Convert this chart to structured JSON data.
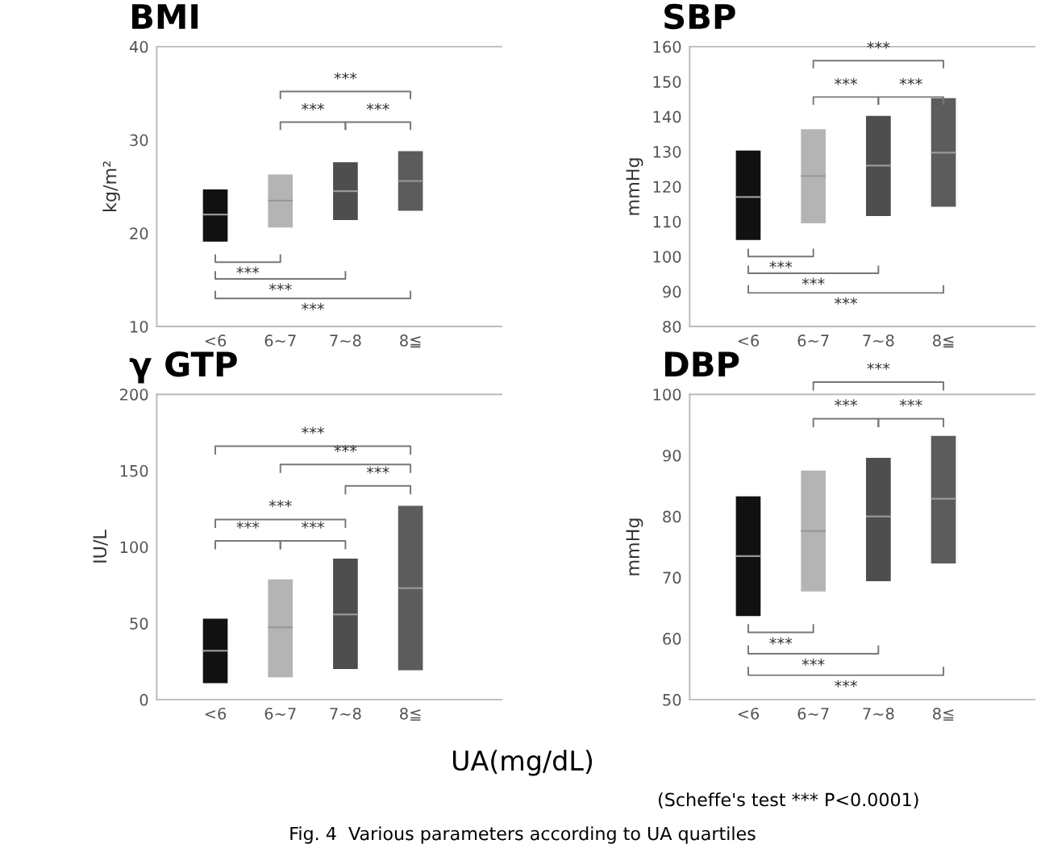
{
  "chart_data": [
    {
      "type": "box",
      "title": "BMI",
      "ylabel": "kg/m²",
      "categories": [
        "<6",
        "6~7",
        "7~8",
        "8≦"
      ],
      "ylim": [
        10,
        40
      ],
      "yticks": [
        10,
        20,
        30,
        40
      ],
      "colors": [
        "#111111",
        "#b4b4b4",
        "#4e4e4e",
        "#5c5c5c"
      ],
      "boxes": [
        {
          "low": 19.1,
          "q1": 19.1,
          "median": 22.0,
          "q3": 24.7,
          "high": 24.7
        },
        {
          "low": 20.6,
          "q1": 20.6,
          "median": 23.5,
          "q3": 26.3,
          "high": 26.3
        },
        {
          "low": 21.4,
          "q1": 21.4,
          "median": 24.5,
          "q3": 27.6,
          "high": 27.6
        },
        {
          "low": 22.4,
          "q1": 22.4,
          "median": 25.6,
          "q3": 28.8,
          "high": 28.8
        }
      ],
      "annotations": [
        "***",
        "***",
        "***",
        "***",
        "***",
        "***"
      ]
    },
    {
      "type": "box",
      "title": "SBP",
      "ylabel": "mmHg",
      "categories": [
        "<6",
        "6~7",
        "7~8",
        "8≦"
      ],
      "ylim": [
        80,
        160
      ],
      "yticks": [
        80,
        90,
        100,
        110,
        120,
        130,
        140,
        150,
        160
      ],
      "colors": [
        "#111111",
        "#b4b4b4",
        "#4e4e4e",
        "#5c5c5c"
      ],
      "boxes": [
        {
          "low": 104.7,
          "q1": 104.7,
          "median": 117,
          "q3": 130.3,
          "high": 130.3
        },
        {
          "low": 109.5,
          "q1": 109.5,
          "median": 123,
          "q3": 136.4,
          "high": 136.4
        },
        {
          "low": 111.6,
          "q1": 111.6,
          "median": 126,
          "q3": 140.2,
          "high": 140.2
        },
        {
          "low": 114.2,
          "q1": 114.2,
          "median": 129.7,
          "q3": 145.3,
          "high": 145.3
        }
      ],
      "annotations": [
        "***",
        "***",
        "***",
        "***",
        "***",
        "***"
      ]
    },
    {
      "type": "box",
      "title": "γ GTP",
      "ylabel": "IU/L",
      "categories": [
        "<6",
        "6~7",
        "7~8",
        "8≦"
      ],
      "ylim": [
        0,
        200
      ],
      "yticks": [
        0,
        50,
        100,
        150,
        200
      ],
      "colors": [
        "#111111",
        "#b4b4b4",
        "#4e4e4e",
        "#5c5c5c"
      ],
      "boxes": [
        {
          "low": 10.8,
          "q1": 10.8,
          "median": 32,
          "q3": 53,
          "high": 53
        },
        {
          "low": 14.6,
          "q1": 14.6,
          "median": 47.3,
          "q3": 78.8,
          "high": 78.8
        },
        {
          "low": 20,
          "q1": 20,
          "median": 55.8,
          "q3": 92.3,
          "high": 92.3
        },
        {
          "low": 19.2,
          "q1": 19.2,
          "median": 73,
          "q3": 126.9,
          "high": 126.9
        }
      ],
      "annotations": [
        "***",
        "***",
        "***",
        "***",
        "***",
        "***"
      ]
    },
    {
      "type": "box",
      "title": "DBP",
      "ylabel": "mmHg",
      "categories": [
        "<6",
        "6~7",
        "7~8",
        "8≦"
      ],
      "ylim": [
        50,
        100
      ],
      "yticks": [
        50,
        60,
        70,
        80,
        90,
        100
      ],
      "colors": [
        "#111111",
        "#b4b4b4",
        "#4e4e4e",
        "#5c5c5c"
      ],
      "boxes": [
        {
          "low": 63.7,
          "q1": 63.7,
          "median": 73.5,
          "q3": 83.3,
          "high": 83.3
        },
        {
          "low": 67.7,
          "q1": 67.7,
          "median": 77.6,
          "q3": 87.5,
          "high": 87.5
        },
        {
          "low": 69.4,
          "q1": 69.4,
          "median": 80,
          "q3": 89.6,
          "high": 89.6
        },
        {
          "low": 72.3,
          "q1": 72.3,
          "median": 82.9,
          "q3": 93.2,
          "high": 93.2
        }
      ],
      "annotations": [
        "***",
        "***",
        "***",
        "***",
        "***",
        "***",
        "UA(mg/dL)",
        "(Scheffe's test *** P<0.0001)",
        "Fig. 4  Various parameters according to UA quartiles"
      ]
    }
  ]
}
